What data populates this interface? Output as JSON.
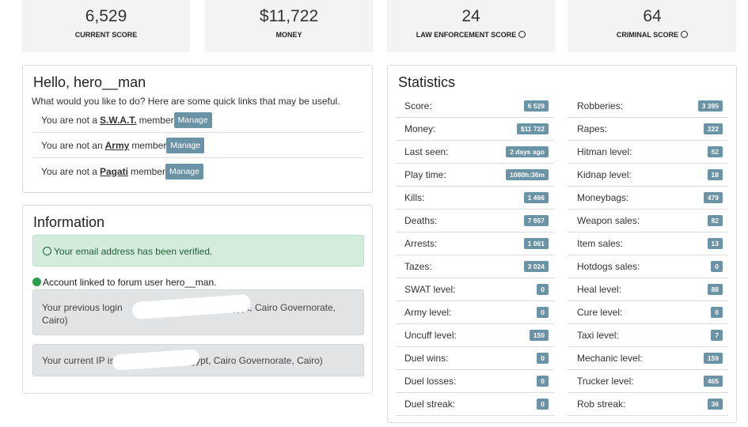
{
  "summary": [
    {
      "value": "6,529",
      "label": "CURRENT SCORE"
    },
    {
      "value": "$11,722",
      "label": "MONEY"
    },
    {
      "value": "24",
      "label": "LAW ENFORCEMENT SCORE"
    },
    {
      "value": "64",
      "label": "CRIMINAL SCORE"
    }
  ],
  "hello": {
    "title": "Hello, hero__man",
    "intro": "What would you like to do? Here are some quick links that may be useful.",
    "memberships": [
      {
        "prefix": "You are not a",
        "group": "S.W.A.T.",
        "suffix": "member",
        "button": "Manage"
      },
      {
        "prefix": "You are not an",
        "group": "Army",
        "suffix": "member",
        "button": "Manage"
      },
      {
        "prefix": "You are not a",
        "group": "Pagati",
        "suffix": "member",
        "button": "Manage"
      }
    ]
  },
  "information": {
    "title": "Information",
    "verified": "Your email address has been verified.",
    "linked": "Account linked to forum user hero__man.",
    "previous_login": {
      "start": "Your previous login",
      "end": "(Egypt, Cairo Governorate, Cairo)"
    },
    "current_ip": {
      "start": "Your current IP is",
      "end": "Egypt, Cairo Governorate, Cairo)"
    }
  },
  "statistics": {
    "title": "Statistics",
    "left": [
      {
        "label": "Score:",
        "value": "6 529"
      },
      {
        "label": "Money:",
        "value": "$11 722"
      },
      {
        "label": "Last seen:",
        "value": "2 days ago"
      },
      {
        "label": "Play time:",
        "value": "1080h:36m"
      },
      {
        "label": "Kills:",
        "value": "1 466"
      },
      {
        "label": "Deaths:",
        "value": "7 957"
      },
      {
        "label": "Arrests:",
        "value": "1 061"
      },
      {
        "label": "Tazes:",
        "value": "3 024"
      },
      {
        "label": "SWAT level:",
        "value": "0"
      },
      {
        "label": "Army level:",
        "value": "0"
      },
      {
        "label": "Uncuff level:",
        "value": "150"
      },
      {
        "label": "Duel wins:",
        "value": "0"
      },
      {
        "label": "Duel losses:",
        "value": "0"
      },
      {
        "label": "Duel streak:",
        "value": "0"
      }
    ],
    "right": [
      {
        "label": "Robberies:",
        "value": "3 395"
      },
      {
        "label": "Rapes:",
        "value": "222"
      },
      {
        "label": "Hitman level:",
        "value": "52"
      },
      {
        "label": "Kidnap level:",
        "value": "18"
      },
      {
        "label": "Moneybags:",
        "value": "479"
      },
      {
        "label": "Weapon sales:",
        "value": "82"
      },
      {
        "label": "Item sales:",
        "value": "13"
      },
      {
        "label": "Hotdogs sales:",
        "value": "0"
      },
      {
        "label": "Heal level:",
        "value": "88"
      },
      {
        "label": "Cure level:",
        "value": "0"
      },
      {
        "label": "Taxi level:",
        "value": "7"
      },
      {
        "label": "Mechanic level:",
        "value": "159"
      },
      {
        "label": "Trucker level:",
        "value": "465"
      },
      {
        "label": "Rob streak:",
        "value": "36"
      }
    ]
  }
}
